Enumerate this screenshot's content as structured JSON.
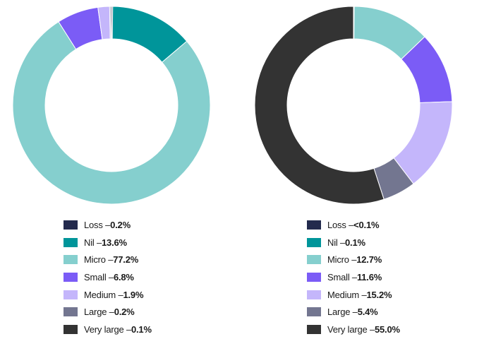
{
  "chart_data": [
    {
      "type": "pie",
      "categories": [
        "Loss",
        "Nil",
        "Micro",
        "Small",
        "Medium",
        "Large",
        "Very large"
      ],
      "values": [
        0.2,
        13.6,
        77.2,
        6.8,
        1.9,
        0.2,
        0.1
      ],
      "value_labels": [
        "0.2%",
        "13.6%",
        "77.2%",
        "6.8%",
        "1.9%",
        "0.2%",
        "0.1%"
      ],
      "colors": [
        "#232a4d",
        "#00959a",
        "#85cfce",
        "#7b5cf6",
        "#c4b6fb",
        "#737690",
        "#333333"
      ],
      "donut": true,
      "legend_position": "bottom"
    },
    {
      "type": "pie",
      "categories": [
        "Loss",
        "Nil",
        "Micro",
        "Small",
        "Medium",
        "Large",
        "Very large"
      ],
      "values": [
        0.02,
        0.1,
        12.7,
        11.6,
        15.2,
        5.4,
        55.0
      ],
      "value_labels": [
        "<0.1%",
        "0.1%",
        "12.7%",
        "11.6%",
        "15.2%",
        "5.4%",
        "55.0%"
      ],
      "colors": [
        "#232a4d",
        "#00959a",
        "#85cfce",
        "#7b5cf6",
        "#c4b6fb",
        "#737690",
        "#333333"
      ],
      "donut": true,
      "legend_position": "bottom"
    }
  ]
}
